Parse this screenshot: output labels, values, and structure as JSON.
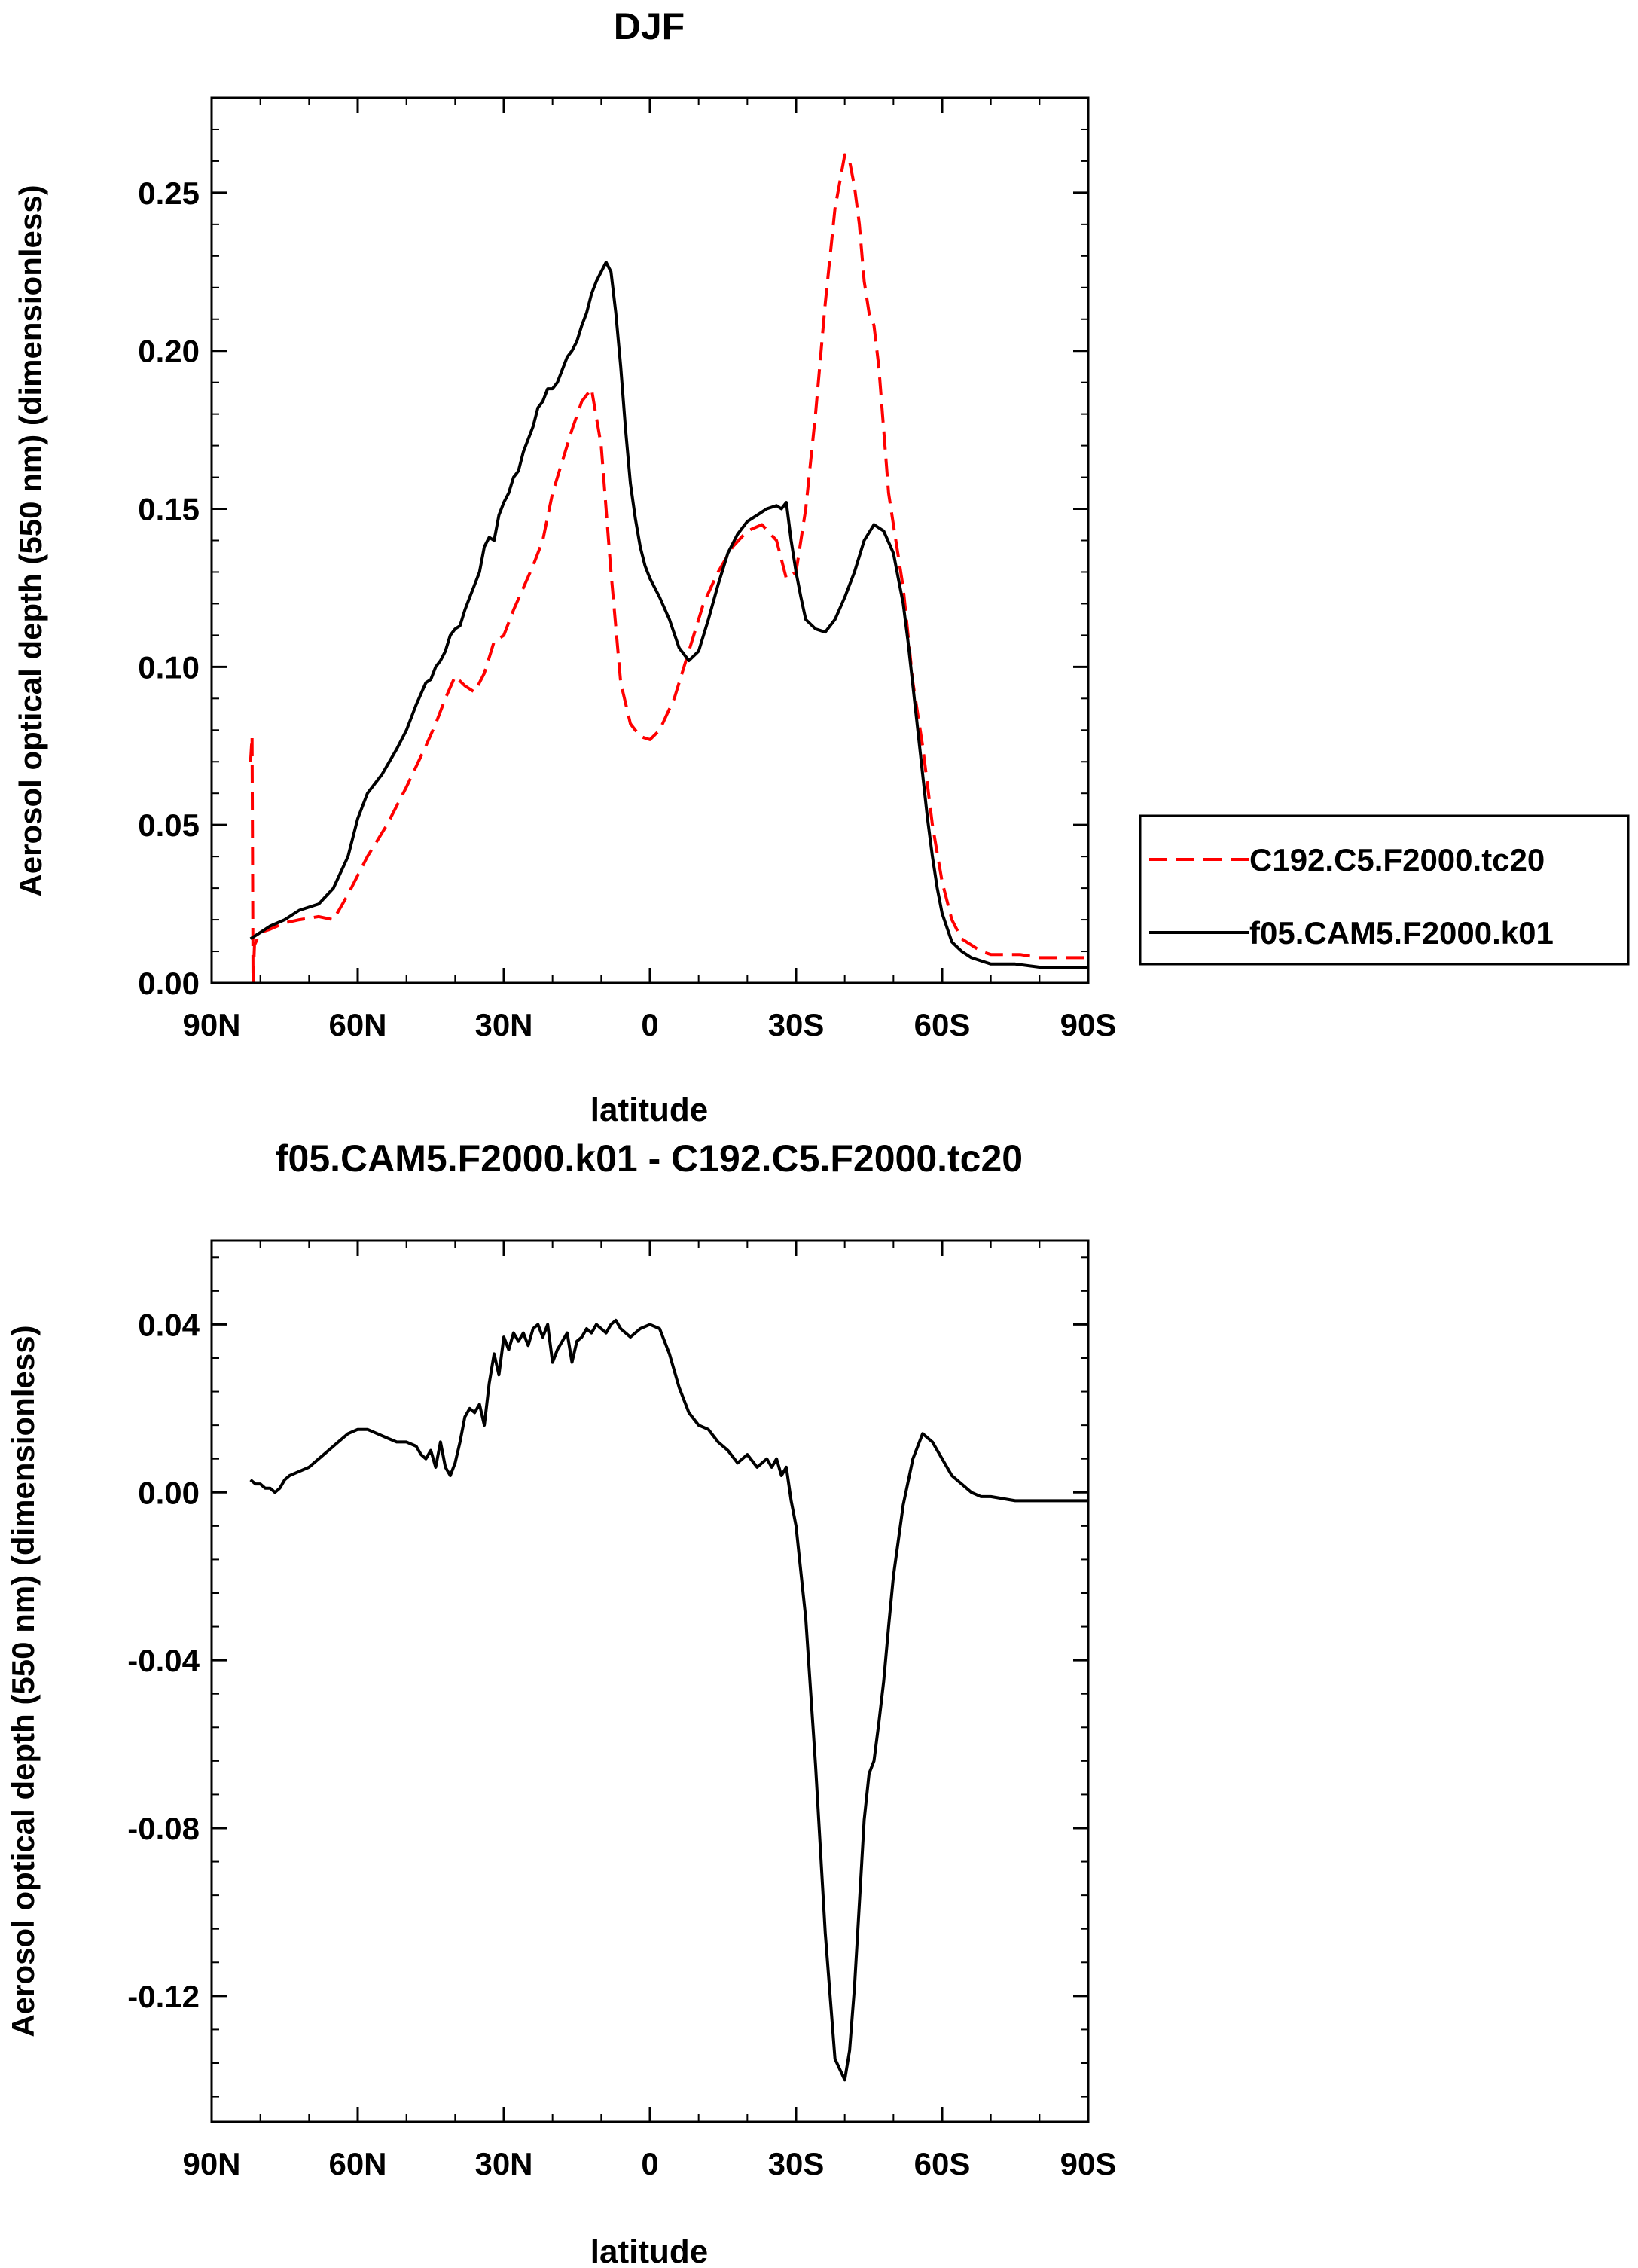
{
  "chart_data": [
    {
      "type": "line",
      "title": "DJF",
      "xlabel": "latitude",
      "ylabel": "Aerosol optical depth (550 nm) (dimensionless)",
      "xlim": [
        90,
        -90
      ],
      "ylim": [
        0,
        0.28
      ],
      "x_ticks": [
        90,
        60,
        30,
        0,
        -30,
        -60,
        -90
      ],
      "x_tick_labels": [
        "90N",
        "60N",
        "30N",
        "0",
        "30S",
        "60S",
        "90S"
      ],
      "y_ticks": [
        0,
        0.05,
        0.1,
        0.15,
        0.2,
        0.25
      ],
      "y_tick_labels": [
        "0.00",
        "0.05",
        "0.10",
        "0.15",
        "0.20",
        "0.25"
      ],
      "legend_position": "right",
      "series": [
        {
          "name": "C192.C5.F2000.tc20",
          "color": "#ff0000",
          "dash": "dashed",
          "x": [
            82.0,
            81.7,
            81.5,
            81.2,
            80,
            78,
            75,
            72,
            68,
            65,
            62,
            58,
            54,
            50,
            46,
            44,
            42,
            40,
            38,
            36,
            34,
            32,
            30,
            28,
            26,
            24,
            22,
            20,
            18,
            16,
            14,
            12,
            10,
            8,
            6,
            4,
            2,
            0,
            -2,
            -5,
            -8,
            -11,
            -14,
            -17,
            -20,
            -23,
            -26,
            -28,
            -30,
            -32,
            -34,
            -36,
            -38,
            -40,
            -41,
            -42,
            -43,
            -44,
            -45,
            -46,
            -47,
            -48,
            -49,
            -50,
            -51,
            -52,
            -54,
            -56,
            -58,
            -60,
            -62,
            -64,
            -66,
            -68,
            -70,
            -73,
            -76,
            -80,
            -84,
            -90
          ],
          "y": [
            0.07,
            0.078,
            0.0,
            0.012,
            0.016,
            0.017,
            0.019,
            0.02,
            0.021,
            0.02,
            0.028,
            0.04,
            0.05,
            0.062,
            0.075,
            0.082,
            0.09,
            0.097,
            0.094,
            0.092,
            0.098,
            0.108,
            0.11,
            0.118,
            0.125,
            0.132,
            0.14,
            0.155,
            0.165,
            0.175,
            0.184,
            0.188,
            0.17,
            0.13,
            0.095,
            0.082,
            0.078,
            0.077,
            0.08,
            0.09,
            0.105,
            0.12,
            0.13,
            0.138,
            0.143,
            0.145,
            0.14,
            0.128,
            0.13,
            0.15,
            0.18,
            0.215,
            0.245,
            0.262,
            0.26,
            0.252,
            0.24,
            0.222,
            0.212,
            0.208,
            0.195,
            0.175,
            0.155,
            0.145,
            0.135,
            0.125,
            0.095,
            0.075,
            0.05,
            0.032,
            0.02,
            0.014,
            0.012,
            0.01,
            0.009,
            0.009,
            0.009,
            0.008,
            0.008,
            0.008
          ]
        },
        {
          "name": "f05.CAM5.F2000.k01",
          "color": "#000000",
          "dash": "solid",
          "x": [
            82.0,
            80,
            78,
            75,
            72,
            68,
            65,
            62,
            60,
            58,
            55,
            52,
            50,
            48,
            46,
            45,
            44,
            43,
            42,
            41,
            40,
            39,
            38,
            37,
            36,
            35,
            34,
            33,
            32,
            31,
            30,
            29,
            28,
            27,
            26,
            25,
            24,
            23,
            22,
            21,
            20,
            19,
            18,
            17,
            16,
            15,
            14,
            13,
            12,
            11,
            10,
            9,
            8,
            7,
            6,
            5,
            4,
            3,
            2,
            1,
            0,
            -2,
            -4,
            -6,
            -8,
            -10,
            -12,
            -14,
            -16,
            -18,
            -20,
            -22,
            -24,
            -26,
            -27,
            -28,
            -29,
            -30,
            -31,
            -32,
            -34,
            -36,
            -38,
            -40,
            -42,
            -44,
            -46,
            -48,
            -50,
            -52,
            -53,
            -54,
            -55,
            -56,
            -57,
            -58,
            -59,
            -60,
            -62,
            -64,
            -66,
            -68,
            -70,
            -72,
            -75,
            -80,
            -85,
            -90
          ],
          "y": [
            0.014,
            0.016,
            0.018,
            0.02,
            0.023,
            0.025,
            0.03,
            0.04,
            0.052,
            0.06,
            0.066,
            0.074,
            0.08,
            0.088,
            0.095,
            0.096,
            0.1,
            0.102,
            0.105,
            0.11,
            0.112,
            0.113,
            0.118,
            0.122,
            0.126,
            0.13,
            0.138,
            0.141,
            0.14,
            0.148,
            0.152,
            0.155,
            0.16,
            0.162,
            0.168,
            0.172,
            0.176,
            0.182,
            0.184,
            0.188,
            0.188,
            0.19,
            0.194,
            0.198,
            0.2,
            0.203,
            0.208,
            0.212,
            0.218,
            0.222,
            0.225,
            0.228,
            0.225,
            0.212,
            0.195,
            0.175,
            0.158,
            0.147,
            0.138,
            0.132,
            0.128,
            0.122,
            0.115,
            0.106,
            0.102,
            0.105,
            0.115,
            0.126,
            0.136,
            0.142,
            0.146,
            0.148,
            0.15,
            0.151,
            0.15,
            0.152,
            0.14,
            0.13,
            0.122,
            0.115,
            0.112,
            0.111,
            0.115,
            0.122,
            0.13,
            0.14,
            0.145,
            0.143,
            0.136,
            0.12,
            0.108,
            0.094,
            0.08,
            0.066,
            0.052,
            0.04,
            0.03,
            0.022,
            0.013,
            0.01,
            0.008,
            0.007,
            0.006,
            0.006,
            0.006,
            0.005,
            0.005,
            0.005
          ]
        }
      ]
    },
    {
      "type": "line",
      "title": "f05.CAM5.F2000.k01 - C192.C5.F2000.tc20",
      "xlabel": "latitude",
      "ylabel": "Aerosol optical depth (550 nm) (dimensionless)",
      "xlim": [
        90,
        -90
      ],
      "ylim": [
        -0.15,
        0.06
      ],
      "x_ticks": [
        90,
        60,
        30,
        0,
        -30,
        -60,
        -90
      ],
      "x_tick_labels": [
        "90N",
        "60N",
        "30N",
        "0",
        "30S",
        "60S",
        "90S"
      ],
      "y_ticks": [
        -0.12,
        -0.08,
        -0.04,
        0,
        0.04
      ],
      "y_tick_labels": [
        "-0.12",
        "-0.08",
        "-0.04",
        "0.00",
        "0.04"
      ],
      "series": [
        {
          "name": "",
          "color": "#000000",
          "dash": "solid",
          "x": [
            82,
            81,
            80,
            79,
            78,
            77,
            76,
            75,
            74,
            72,
            70,
            68,
            66,
            64,
            62,
            60,
            58,
            56,
            54,
            52,
            50,
            48,
            47,
            46,
            45,
            44,
            43,
            42,
            41,
            40,
            39,
            38,
            37,
            36,
            35,
            34,
            33,
            32,
            31,
            30,
            29,
            28,
            27,
            26,
            25,
            24,
            23,
            22,
            21,
            20,
            19,
            18,
            17,
            16,
            15,
            14,
            13,
            12,
            11,
            10,
            9,
            8,
            7,
            6,
            5,
            4,
            2,
            0,
            -2,
            -4,
            -6,
            -8,
            -10,
            -12,
            -14,
            -16,
            -18,
            -20,
            -22,
            -24,
            -25,
            -26,
            -27,
            -28,
            -29,
            -30,
            -32,
            -34,
            -36,
            -38,
            -40,
            -41,
            -42,
            -43,
            -44,
            -45,
            -46,
            -47,
            -48,
            -49,
            -50,
            -52,
            -54,
            -56,
            -58,
            -60,
            -62,
            -64,
            -66,
            -68,
            -70,
            -75,
            -80,
            -85,
            -90
          ],
          "y": [
            0.003,
            0.002,
            0.002,
            0.001,
            0.001,
            0.0,
            0.001,
            0.003,
            0.004,
            0.005,
            0.006,
            0.008,
            0.01,
            0.012,
            0.014,
            0.015,
            0.015,
            0.014,
            0.013,
            0.012,
            0.012,
            0.011,
            0.009,
            0.008,
            0.01,
            0.006,
            0.012,
            0.006,
            0.004,
            0.007,
            0.012,
            0.018,
            0.02,
            0.019,
            0.021,
            0.016,
            0.026,
            0.033,
            0.028,
            0.037,
            0.034,
            0.038,
            0.036,
            0.038,
            0.035,
            0.039,
            0.04,
            0.037,
            0.04,
            0.031,
            0.034,
            0.036,
            0.038,
            0.031,
            0.036,
            0.037,
            0.039,
            0.038,
            0.04,
            0.039,
            0.038,
            0.04,
            0.041,
            0.039,
            0.038,
            0.037,
            0.039,
            0.04,
            0.039,
            0.033,
            0.025,
            0.019,
            0.016,
            0.015,
            0.012,
            0.01,
            0.007,
            0.009,
            0.006,
            0.008,
            0.006,
            0.008,
            0.004,
            0.006,
            -0.002,
            -0.008,
            -0.03,
            -0.065,
            -0.105,
            -0.135,
            -0.14,
            -0.133,
            -0.118,
            -0.098,
            -0.078,
            -0.067,
            -0.064,
            -0.055,
            -0.045,
            -0.032,
            -0.02,
            -0.003,
            0.008,
            0.014,
            0.012,
            0.008,
            0.004,
            0.002,
            0.0,
            -0.001,
            -0.001,
            -0.002,
            -0.002,
            -0.002,
            -0.002
          ]
        }
      ]
    }
  ]
}
